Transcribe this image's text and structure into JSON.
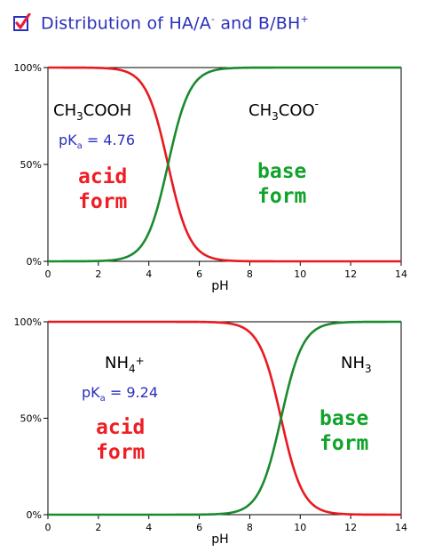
{
  "header": {
    "title_main": "Distribution of HA/A",
    "title_sup1": "-",
    "title_mid": " and B/BH",
    "title_sup2": "+",
    "checkbox_checked": true,
    "checkbox_color": "#2a2fbd",
    "check_color": "#e8203c"
  },
  "colors": {
    "acid": "#e8191f",
    "base": "#1a8a2e",
    "pka_text": "#2a2fbd",
    "acid_label": "#ee1e24",
    "base_label": "#12a32b"
  },
  "chart_data": [
    {
      "type": "line",
      "xlabel": "pH",
      "ylabel": "",
      "xlim": [
        0,
        14
      ],
      "ylim": [
        0,
        100
      ],
      "xticks": [
        "0",
        "2",
        "4",
        "6",
        "8",
        "10",
        "12",
        "14"
      ],
      "yticks": [
        "0%",
        "50%",
        "100%"
      ],
      "pKa": 4.76,
      "pka_label": "pKa = 4.76",
      "pka_prefix": "pK",
      "pka_sub": "a",
      "pka_value": " = 4.76",
      "acid_species": "CH3COOH",
      "acid_species_parts": [
        "CH",
        "3",
        "COOH"
      ],
      "base_species": "CH3COO-",
      "base_species_parts": [
        "CH",
        "3",
        "COO",
        "-"
      ],
      "acid_form_label": [
        "acid",
        "form"
      ],
      "base_form_label": [
        "base",
        "form"
      ],
      "series": [
        {
          "name": "acid form",
          "x": [
            0,
            2,
            3,
            4,
            4.5,
            4.76,
            5,
            5.5,
            6,
            7,
            8,
            10,
            14
          ],
          "values": [
            100,
            99.8,
            98.3,
            85.2,
            64.5,
            50,
            36.5,
            15.4,
            5.4,
            0.6,
            0.1,
            0,
            0
          ]
        },
        {
          "name": "base form",
          "x": [
            0,
            2,
            3,
            4,
            4.5,
            4.76,
            5,
            5.5,
            6,
            7,
            8,
            10,
            14
          ],
          "values": [
            0,
            0.2,
            1.7,
            14.8,
            35.5,
            50,
            63.5,
            84.6,
            94.6,
            99.4,
            99.9,
            100,
            100
          ]
        }
      ]
    },
    {
      "type": "line",
      "xlabel": "pH",
      "ylabel": "",
      "xlim": [
        0,
        14
      ],
      "ylim": [
        0,
        100
      ],
      "xticks": [
        "0",
        "2",
        "4",
        "6",
        "8",
        "10",
        "12",
        "14"
      ],
      "yticks": [
        "0%",
        "50%",
        "100%"
      ],
      "pKa": 9.24,
      "pka_label": "pKa = 9.24",
      "pka_prefix": "pK",
      "pka_sub": "a",
      "pka_value": " = 9.24",
      "acid_species": "NH4+",
      "acid_species_parts": [
        "NH",
        "4",
        "+"
      ],
      "base_species": "NH3",
      "base_species_parts": [
        "NH",
        "3"
      ],
      "acid_form_label": [
        "acid",
        "form"
      ],
      "base_form_label": [
        "base",
        "form"
      ],
      "series": [
        {
          "name": "acid form",
          "x": [
            0,
            6,
            7,
            8,
            8.5,
            9.24,
            10,
            10.5,
            11,
            12,
            14
          ],
          "values": [
            100,
            99.9,
            99.4,
            94.6,
            84.6,
            50,
            14.8,
            5.2,
            1.7,
            0.2,
            0
          ]
        },
        {
          "name": "base form",
          "x": [
            0,
            6,
            7,
            8,
            8.5,
            9.24,
            10,
            10.5,
            11,
            12,
            14
          ],
          "values": [
            0,
            0.1,
            0.6,
            5.4,
            15.4,
            50,
            85.2,
            94.8,
            98.3,
            99.8,
            100
          ]
        }
      ]
    }
  ]
}
